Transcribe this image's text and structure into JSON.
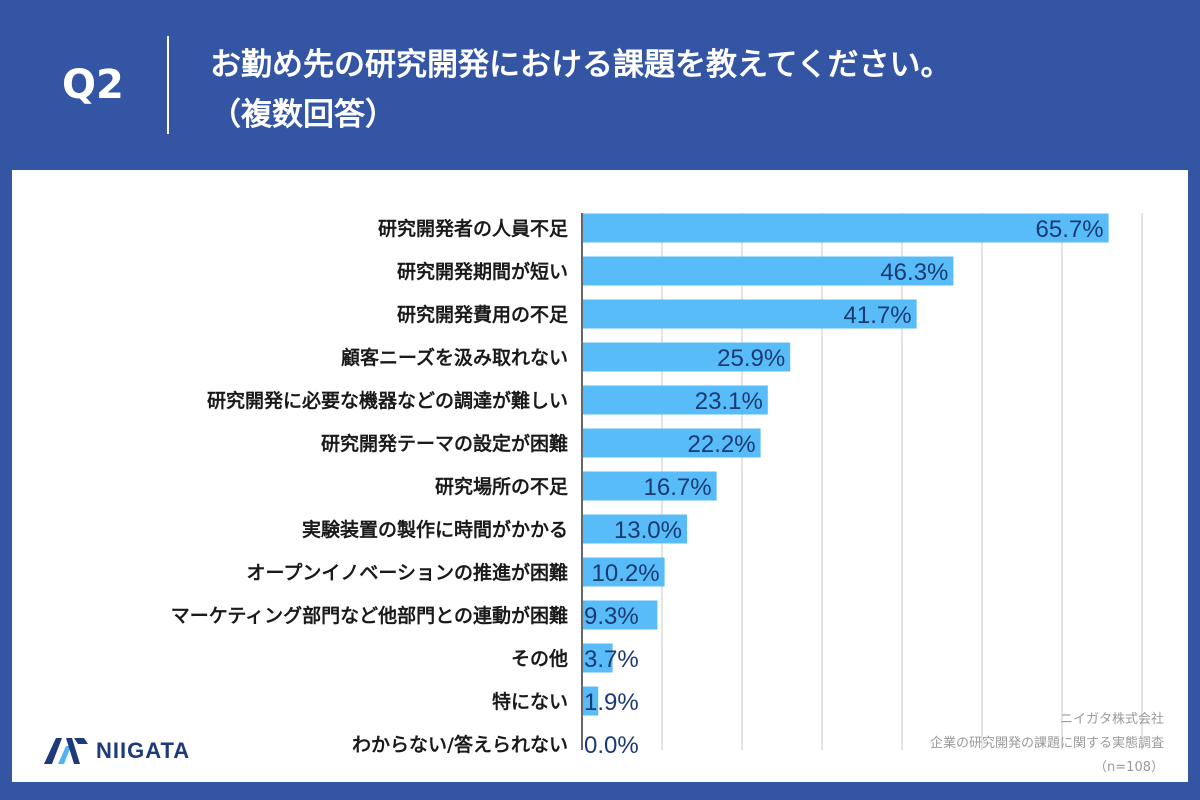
{
  "header": {
    "qnum": "Q2",
    "title_line1": "お勤め先の研究開発における課題を教えてください。",
    "title_line2": "（複数回答）"
  },
  "logo": {
    "text": "NIIGATA"
  },
  "credits": {
    "company": "ニイガタ株式会社",
    "survey": "企業の研究開発の課題に関する実態調査",
    "sample": "（n=108）"
  },
  "colors": {
    "bar": "#58bcf8",
    "label": "#1a1a1a",
    "value_text": "#1b3a73",
    "grid": "#c8c8c8",
    "background": "#3355a4"
  },
  "chart_data": {
    "type": "bar",
    "orientation": "horizontal",
    "categories": [
      "研究開発者の人員不足",
      "研究開発期間が短い",
      "研究開発費用の不足",
      "顧客ニーズを汲み取れない",
      "研究開発に必要な機器などの調達が難しい",
      "研究開発テーマの設定が困難",
      "研究場所の不足",
      "実験装置の製作に時間がかかる",
      "オープンイノベーションの推進が困難",
      "マーケティング部門など他部門との連動が困難",
      "その他",
      "特にない",
      "わからない/答えられない"
    ],
    "values": [
      65.7,
      46.3,
      41.7,
      25.9,
      23.1,
      22.2,
      16.7,
      13.0,
      10.2,
      9.3,
      3.7,
      1.9,
      0.0
    ],
    "value_labels": [
      "65.7%",
      "46.3%",
      "41.7%",
      "25.9%",
      "23.1%",
      "22.2%",
      "16.7%",
      "13.0%",
      "10.2%",
      "9.3%",
      "3.7%",
      "1.9%",
      "0.0%"
    ],
    "xlim": [
      0,
      70
    ],
    "grid": true,
    "title": "",
    "xlabel": "",
    "ylabel": ""
  }
}
